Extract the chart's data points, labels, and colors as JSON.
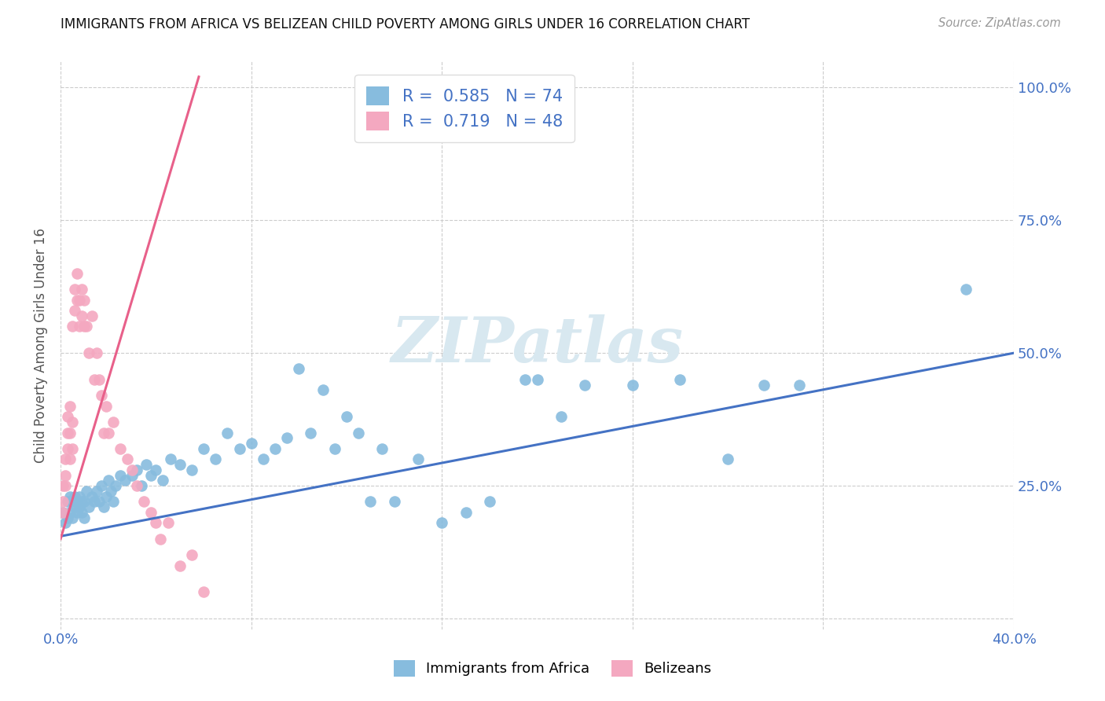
{
  "title": "IMMIGRANTS FROM AFRICA VS BELIZEAN CHILD POVERTY AMONG GIRLS UNDER 16 CORRELATION CHART",
  "source": "Source: ZipAtlas.com",
  "ylabel": "Child Poverty Among Girls Under 16",
  "xlim": [
    0.0,
    0.4
  ],
  "ylim": [
    -0.02,
    1.05
  ],
  "x_ticks": [
    0.0,
    0.08,
    0.16,
    0.24,
    0.32,
    0.4
  ],
  "x_tick_labels": [
    "0.0%",
    "",
    "",
    "",
    "",
    "40.0%"
  ],
  "y_ticks": [
    0.0,
    0.25,
    0.5,
    0.75,
    1.0
  ],
  "y_tick_labels_right": [
    "",
    "25.0%",
    "50.0%",
    "75.0%",
    "100.0%"
  ],
  "blue_color": "#87BCDE",
  "pink_color": "#F4A8C0",
  "blue_line_color": "#4472C4",
  "pink_line_color": "#E8608A",
  "watermark_color": "#D8E8F0",
  "watermark": "ZIPatlas",
  "legend_R1": "0.585",
  "legend_N1": "74",
  "legend_R2": "0.719",
  "legend_N2": "48",
  "blue_points_x": [
    0.001,
    0.002,
    0.003,
    0.003,
    0.004,
    0.004,
    0.005,
    0.005,
    0.006,
    0.006,
    0.007,
    0.007,
    0.008,
    0.008,
    0.009,
    0.009,
    0.01,
    0.01,
    0.011,
    0.012,
    0.013,
    0.014,
    0.015,
    0.016,
    0.017,
    0.018,
    0.019,
    0.02,
    0.021,
    0.022,
    0.023,
    0.025,
    0.027,
    0.03,
    0.032,
    0.034,
    0.036,
    0.038,
    0.04,
    0.043,
    0.046,
    0.05,
    0.055,
    0.06,
    0.065,
    0.07,
    0.075,
    0.08,
    0.085,
    0.09,
    0.095,
    0.1,
    0.105,
    0.11,
    0.115,
    0.12,
    0.125,
    0.13,
    0.135,
    0.14,
    0.15,
    0.16,
    0.17,
    0.18,
    0.195,
    0.2,
    0.21,
    0.22,
    0.24,
    0.26,
    0.28,
    0.295,
    0.31,
    0.38
  ],
  "blue_points_y": [
    0.2,
    0.18,
    0.22,
    0.19,
    0.23,
    0.2,
    0.22,
    0.19,
    0.21,
    0.23,
    0.2,
    0.22,
    0.21,
    0.23,
    0.2,
    0.22,
    0.22,
    0.19,
    0.24,
    0.21,
    0.23,
    0.22,
    0.24,
    0.22,
    0.25,
    0.21,
    0.23,
    0.26,
    0.24,
    0.22,
    0.25,
    0.27,
    0.26,
    0.27,
    0.28,
    0.25,
    0.29,
    0.27,
    0.28,
    0.26,
    0.3,
    0.29,
    0.28,
    0.32,
    0.3,
    0.35,
    0.32,
    0.33,
    0.3,
    0.32,
    0.34,
    0.47,
    0.35,
    0.43,
    0.32,
    0.38,
    0.35,
    0.22,
    0.32,
    0.22,
    0.3,
    0.18,
    0.2,
    0.22,
    0.45,
    0.45,
    0.38,
    0.44,
    0.44,
    0.45,
    0.3,
    0.44,
    0.44,
    0.62
  ],
  "pink_points_x": [
    0.001,
    0.001,
    0.001,
    0.002,
    0.002,
    0.002,
    0.003,
    0.003,
    0.003,
    0.004,
    0.004,
    0.004,
    0.005,
    0.005,
    0.005,
    0.006,
    0.006,
    0.007,
    0.007,
    0.008,
    0.008,
    0.009,
    0.009,
    0.01,
    0.01,
    0.011,
    0.012,
    0.013,
    0.014,
    0.015,
    0.016,
    0.017,
    0.018,
    0.019,
    0.02,
    0.022,
    0.025,
    0.028,
    0.03,
    0.032,
    0.035,
    0.038,
    0.04,
    0.042,
    0.045,
    0.05,
    0.055,
    0.06
  ],
  "pink_points_y": [
    0.2,
    0.22,
    0.25,
    0.25,
    0.27,
    0.3,
    0.32,
    0.35,
    0.38,
    0.3,
    0.35,
    0.4,
    0.32,
    0.37,
    0.55,
    0.58,
    0.62,
    0.6,
    0.65,
    0.55,
    0.6,
    0.57,
    0.62,
    0.55,
    0.6,
    0.55,
    0.5,
    0.57,
    0.45,
    0.5,
    0.45,
    0.42,
    0.35,
    0.4,
    0.35,
    0.37,
    0.32,
    0.3,
    0.28,
    0.25,
    0.22,
    0.2,
    0.18,
    0.15,
    0.18,
    0.1,
    0.12,
    0.05
  ],
  "blue_line_x": [
    0.0,
    0.4
  ],
  "blue_line_y": [
    0.155,
    0.5
  ],
  "pink_line_x": [
    0.0,
    0.058
  ],
  "pink_line_y": [
    0.15,
    1.02
  ]
}
